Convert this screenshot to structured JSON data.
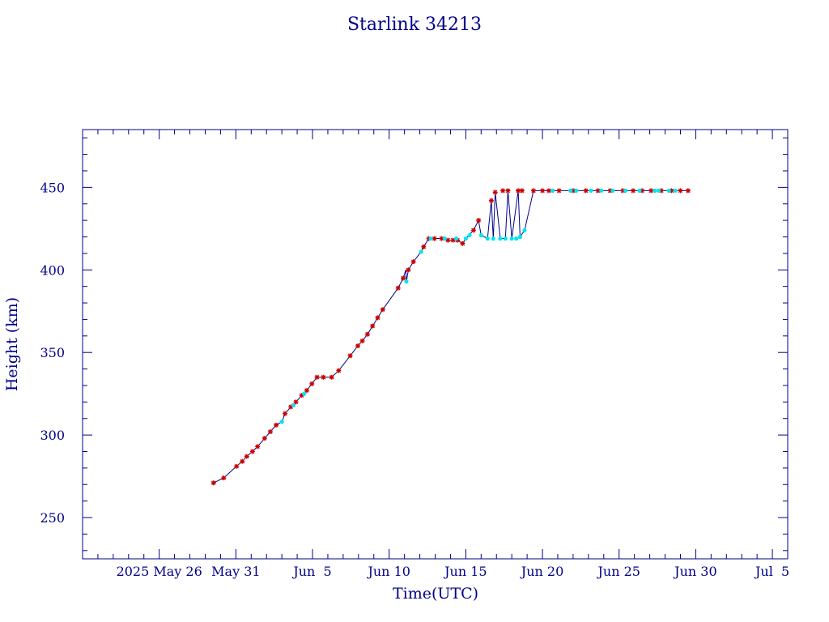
{
  "chart_data": {
    "type": "scatter",
    "title": "Starlink 34213",
    "xlabel": "Time(UTC)",
    "ylabel": "Height (km)",
    "x_range": [
      "2025-05-21",
      "2025-07-06"
    ],
    "ylim": [
      225,
      485
    ],
    "y_ticks": [
      250,
      300,
      350,
      400,
      450
    ],
    "x_ticks": [
      {
        "date": "2025-05-26",
        "label": "2025 May 26"
      },
      {
        "date": "2025-05-31",
        "label": "May 31"
      },
      {
        "date": "2025-06-05",
        "label": "Jun  5"
      },
      {
        "date": "2025-06-10",
        "label": "Jun 10"
      },
      {
        "date": "2025-06-15",
        "label": "Jun 15"
      },
      {
        "date": "2025-06-20",
        "label": "Jun 20"
      },
      {
        "date": "2025-06-25",
        "label": "Jun 25"
      },
      {
        "date": "2025-06-30",
        "label": "Jun 30"
      },
      {
        "date": "2025-07-05",
        "label": "Jul  5"
      }
    ],
    "grid": false,
    "colors": {
      "axis": "#00008b",
      "line": "#00008b",
      "marker_primary": "#cc0000",
      "marker_secondary": "#00e5ee"
    },
    "series": [
      {
        "marker": "star",
        "color": "#cc0000",
        "points": [
          [
            "2025-05-29T13:00",
            271
          ],
          [
            "2025-05-30T05:00",
            274
          ],
          [
            "2025-05-31T01:00",
            281
          ],
          [
            "2025-05-31T10:00",
            284
          ],
          [
            "2025-05-31T17:00",
            287
          ],
          [
            "2025-06-01T02:00",
            290
          ],
          [
            "2025-06-01T10:00",
            293
          ],
          [
            "2025-06-01T21:00",
            298
          ],
          [
            "2025-06-02T06:00",
            302
          ],
          [
            "2025-06-02T15:00",
            306
          ],
          [
            "2025-06-03T05:00",
            313
          ],
          [
            "2025-06-03T14:00",
            317
          ],
          [
            "2025-06-03T22:00",
            320
          ],
          [
            "2025-06-04T07:00",
            324
          ],
          [
            "2025-06-04T15:00",
            327
          ],
          [
            "2025-06-04T23:00",
            331
          ],
          [
            "2025-06-05T07:00",
            335
          ],
          [
            "2025-06-05T17:00",
            335
          ],
          [
            "2025-06-06T06:00",
            335
          ],
          [
            "2025-06-06T17:00",
            339
          ],
          [
            "2025-06-07T11:00",
            348
          ],
          [
            "2025-06-07T23:00",
            354
          ],
          [
            "2025-06-08T06:00",
            357
          ],
          [
            "2025-06-08T14:00",
            361
          ],
          [
            "2025-06-08T22:00",
            366
          ],
          [
            "2025-06-09T06:00",
            371
          ],
          [
            "2025-06-09T14:00",
            376
          ],
          [
            "2025-06-10T14:00",
            389
          ],
          [
            "2025-06-10T22:00",
            395
          ],
          [
            "2025-06-11T06:00",
            400
          ],
          [
            "2025-06-11T14:00",
            405
          ],
          [
            "2025-06-12T06:00",
            414
          ],
          [
            "2025-06-12T14:00",
            419
          ],
          [
            "2025-06-12T23:00",
            419
          ],
          [
            "2025-06-13T10:00",
            419
          ],
          [
            "2025-06-13T20:00",
            418
          ],
          [
            "2025-06-14T04:00",
            418
          ],
          [
            "2025-06-14T11:00",
            418
          ],
          [
            "2025-06-14T19:00",
            416
          ],
          [
            "2025-06-15T12:00",
            424
          ],
          [
            "2025-06-15T20:00",
            430
          ],
          [
            "2025-06-16T16:00",
            442
          ],
          [
            "2025-06-16T22:00",
            447
          ],
          [
            "2025-06-17T10:00",
            448
          ],
          [
            "2025-06-17T18:00",
            448
          ],
          [
            "2025-06-18T10:00",
            448
          ],
          [
            "2025-06-18T16:00",
            448
          ],
          [
            "2025-06-19T10:00",
            448
          ],
          [
            "2025-06-20T00:00",
            448
          ],
          [
            "2025-06-20T10:00",
            448
          ],
          [
            "2025-06-21T02:00",
            448
          ],
          [
            "2025-06-22T00:00",
            448
          ],
          [
            "2025-06-22T20:00",
            448
          ],
          [
            "2025-06-23T15:00",
            448
          ],
          [
            "2025-06-24T10:00",
            448
          ],
          [
            "2025-06-25T06:00",
            448
          ],
          [
            "2025-06-25T22:00",
            448
          ],
          [
            "2025-06-26T12:00",
            448
          ],
          [
            "2025-06-27T02:00",
            448
          ],
          [
            "2025-06-27T18:00",
            448
          ],
          [
            "2025-06-28T10:00",
            448
          ],
          [
            "2025-06-29T00:00",
            448
          ],
          [
            "2025-06-29T12:00",
            448
          ]
        ]
      },
      {
        "marker": "dot",
        "color": "#00e5ee",
        "points": [
          [
            "2025-06-03T00:00",
            308
          ],
          [
            "2025-06-03T18:00",
            318
          ],
          [
            "2025-06-04T11:00",
            325
          ],
          [
            "2025-06-11T03:00",
            393
          ],
          [
            "2025-06-12T02:00",
            411
          ],
          [
            "2025-06-12T17:00",
            419
          ],
          [
            "2025-06-13T15:00",
            419
          ],
          [
            "2025-06-14T09:00",
            419
          ],
          [
            "2025-06-15T00:00",
            419
          ],
          [
            "2025-06-15T06:00",
            421
          ],
          [
            "2025-06-16T00:00",
            421
          ],
          [
            "2025-06-16T10:00",
            419
          ],
          [
            "2025-06-16T19:00",
            419
          ],
          [
            "2025-06-17T06:00",
            419
          ],
          [
            "2025-06-17T14:00",
            419
          ],
          [
            "2025-06-18T00:00",
            419
          ],
          [
            "2025-06-18T07:00",
            419
          ],
          [
            "2025-06-18T13:00",
            420
          ],
          [
            "2025-06-18T20:00",
            424
          ],
          [
            "2025-06-20T16:00",
            448
          ],
          [
            "2025-06-21T20:00",
            448
          ],
          [
            "2025-06-22T05:00",
            448
          ],
          [
            "2025-06-23T04:00",
            448
          ],
          [
            "2025-06-23T20:00",
            448
          ],
          [
            "2025-06-24T14:00",
            448
          ],
          [
            "2025-06-25T10:00",
            448
          ],
          [
            "2025-06-26T08:00",
            448
          ],
          [
            "2025-06-27T08:00",
            448
          ],
          [
            "2025-06-27T14:00",
            448
          ],
          [
            "2025-06-28T06:00",
            448
          ],
          [
            "2025-06-28T16:00",
            448
          ]
        ]
      }
    ],
    "connecting_line": [
      [
        "2025-05-29T13:00",
        271
      ],
      [
        "2025-05-30T05:00",
        274
      ],
      [
        "2025-05-31T01:00",
        281
      ],
      [
        "2025-05-31T10:00",
        284
      ],
      [
        "2025-05-31T17:00",
        287
      ],
      [
        "2025-06-01T02:00",
        290
      ],
      [
        "2025-06-01T10:00",
        293
      ],
      [
        "2025-06-01T21:00",
        298
      ],
      [
        "2025-06-02T06:00",
        302
      ],
      [
        "2025-06-02T15:00",
        306
      ],
      [
        "2025-06-03T00:00",
        308
      ],
      [
        "2025-06-03T05:00",
        313
      ],
      [
        "2025-06-03T14:00",
        317
      ],
      [
        "2025-06-03T18:00",
        318
      ],
      [
        "2025-06-03T22:00",
        320
      ],
      [
        "2025-06-04T07:00",
        324
      ],
      [
        "2025-06-04T11:00",
        325
      ],
      [
        "2025-06-04T15:00",
        327
      ],
      [
        "2025-06-04T23:00",
        331
      ],
      [
        "2025-06-05T07:00",
        335
      ],
      [
        "2025-06-05T17:00",
        335
      ],
      [
        "2025-06-06T06:00",
        335
      ],
      [
        "2025-06-06T17:00",
        339
      ],
      [
        "2025-06-07T11:00",
        348
      ],
      [
        "2025-06-07T23:00",
        354
      ],
      [
        "2025-06-08T06:00",
        357
      ],
      [
        "2025-06-08T14:00",
        361
      ],
      [
        "2025-06-08T22:00",
        366
      ],
      [
        "2025-06-09T06:00",
        371
      ],
      [
        "2025-06-09T14:00",
        376
      ],
      [
        "2025-06-10T14:00",
        389
      ],
      [
        "2025-06-10T22:00",
        395
      ],
      [
        "2025-06-11T02:00",
        400
      ],
      [
        "2025-06-11T03:00",
        393
      ],
      [
        "2025-06-11T06:00",
        400
      ],
      [
        "2025-06-11T14:00",
        405
      ],
      [
        "2025-06-12T02:00",
        411
      ],
      [
        "2025-06-12T06:00",
        414
      ],
      [
        "2025-06-12T14:00",
        419
      ],
      [
        "2025-06-12T23:00",
        419
      ],
      [
        "2025-06-13T10:00",
        419
      ],
      [
        "2025-06-13T20:00",
        418
      ],
      [
        "2025-06-14T04:00",
        418
      ],
      [
        "2025-06-14T11:00",
        418
      ],
      [
        "2025-06-14T19:00",
        416
      ],
      [
        "2025-06-15T00:00",
        419
      ],
      [
        "2025-06-15T12:00",
        424
      ],
      [
        "2025-06-15T20:00",
        430
      ],
      [
        "2025-06-16T00:00",
        421
      ],
      [
        "2025-06-16T10:00",
        419
      ],
      [
        "2025-06-16T16:00",
        442
      ],
      [
        "2025-06-16T19:00",
        419
      ],
      [
        "2025-06-16T22:00",
        447
      ],
      [
        "2025-06-17T06:00",
        419
      ],
      [
        "2025-06-17T14:00",
        419
      ],
      [
        "2025-06-17T18:00",
        448
      ],
      [
        "2025-06-18T00:00",
        419
      ],
      [
        "2025-06-18T10:00",
        448
      ],
      [
        "2025-06-18T13:00",
        420
      ],
      [
        "2025-06-18T20:00",
        424
      ],
      [
        "2025-06-19T10:00",
        448
      ],
      [
        "2025-06-20T00:00",
        448
      ],
      [
        "2025-06-21T02:00",
        448
      ],
      [
        "2025-06-22T00:00",
        448
      ],
      [
        "2025-06-23T15:00",
        448
      ],
      [
        "2025-06-25T06:00",
        448
      ],
      [
        "2025-06-27T02:00",
        448
      ],
      [
        "2025-06-29T12:00",
        448
      ]
    ]
  }
}
